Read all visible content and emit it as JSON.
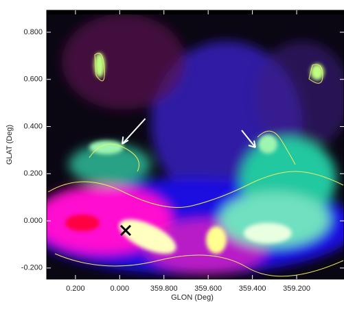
{
  "chart_data": {
    "type": "image",
    "xlabel": "GLON (Deg)",
    "ylabel": "GLAT (Deg)",
    "xlim": [
      0.33,
      -1.014
    ],
    "ylim": [
      -0.247,
      0.893
    ],
    "xticks": [
      {
        "value": 0.2,
        "label": "0.200"
      },
      {
        "value": 0,
        "label": "0.000"
      },
      {
        "value": -0.2,
        "label": "359.800"
      },
      {
        "value": -0.4,
        "label": "359.600"
      },
      {
        "value": -0.6,
        "label": "359.400"
      },
      {
        "value": -0.8,
        "label": "359.200"
      }
    ],
    "yticks": [
      {
        "value": 0.8,
        "label": "0.800"
      },
      {
        "value": 0.6,
        "label": "0.600"
      },
      {
        "value": 0.4,
        "label": "0.400"
      },
      {
        "value": 0.2,
        "label": "0.200"
      },
      {
        "value": 0,
        "label": "0.000"
      },
      {
        "value": -0.2,
        "label": "-0.200"
      }
    ]
  }
}
